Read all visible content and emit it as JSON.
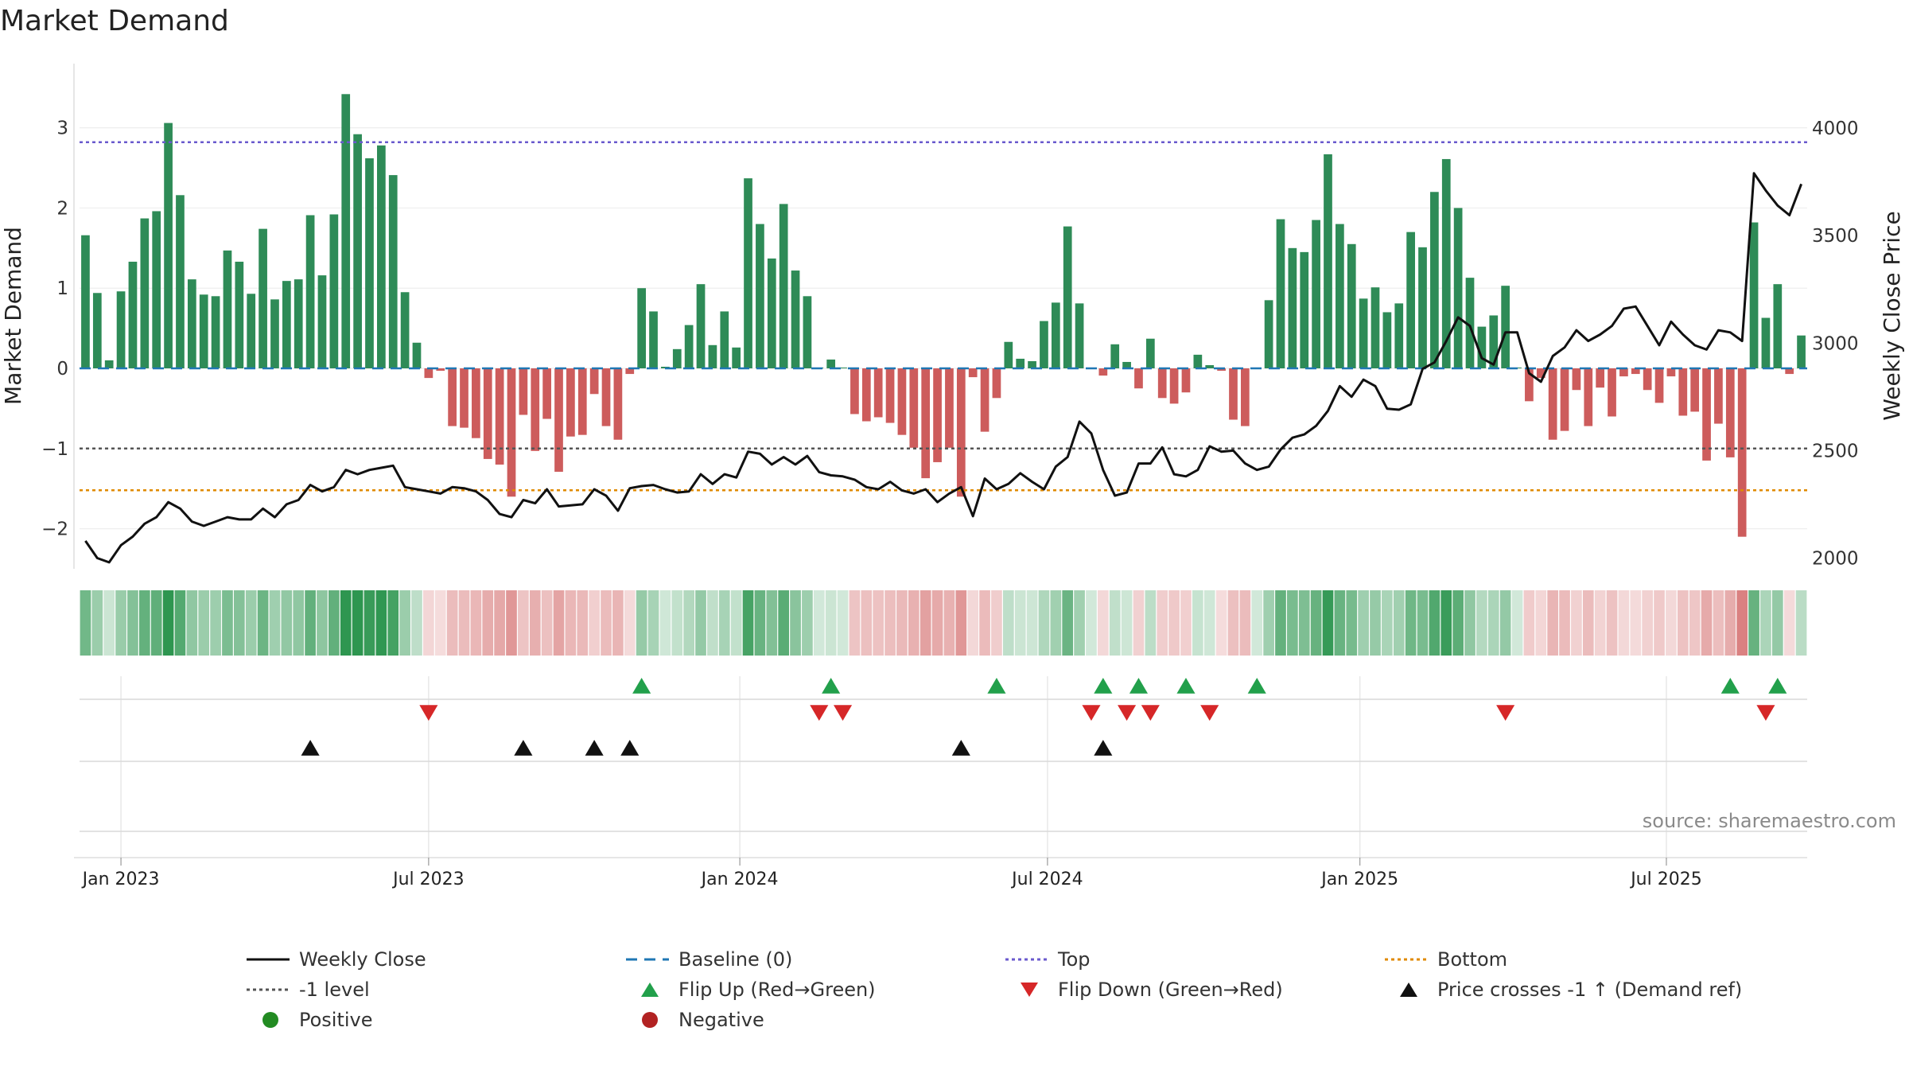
{
  "title": "Market Demand",
  "source": "source: sharemaestro.com",
  "colors": {
    "positive_bar": "#2e8b57",
    "negative_bar": "#cd5c5c",
    "price_line": "#111111",
    "baseline": "#1f77b4",
    "top": "#6a5acd",
    "minus1": "#555555",
    "bottom": "#e08a00",
    "flip_up": "#22a04b",
    "flip_down": "#d62728",
    "price_cross": "#111111",
    "positive_dot": "#228b22",
    "negative_dot": "#b22222"
  },
  "legend": [
    {
      "label": "Weekly Close",
      "kind": "solid",
      "color": "#111111"
    },
    {
      "label": "Baseline (0)",
      "kind": "dashed",
      "color": "#1f77b4"
    },
    {
      "label": "Top",
      "kind": "dotted",
      "color": "#6a5acd"
    },
    {
      "label": "Bottom",
      "kind": "dotted",
      "color": "#e08a00"
    },
    {
      "label": "-1 level",
      "kind": "dotted",
      "color": "#555555"
    },
    {
      "label": "Flip Up (Red→Green)",
      "kind": "tri-up",
      "color": "#22a04b"
    },
    {
      "label": "Flip Down (Green→Red)",
      "kind": "tri-down",
      "color": "#d62728"
    },
    {
      "label": "Price crosses -1 ↑ (Demand ref)",
      "kind": "tri-up",
      "color": "#111111"
    },
    {
      "label": "Positive",
      "kind": "dot",
      "color": "#228b22"
    },
    {
      "label": "Negative",
      "kind": "dot",
      "color": "#b22222"
    }
  ],
  "chart_data": {
    "type": "bar",
    "title": "Market Demand",
    "ylabel": "Market Demand",
    "y2label": "Weekly Close Price",
    "ylim": [
      -2.5,
      3.8
    ],
    "y2lim": [
      1950,
      4300
    ],
    "yticks": [
      -2,
      -1,
      0,
      1,
      2,
      3
    ],
    "y2ticks": [
      2000,
      2500,
      3000,
      3500,
      4000
    ],
    "x_tick_labels": [
      "Jan 2023",
      "Jul 2023",
      "Jan 2024",
      "Jul 2024",
      "Jan 2025",
      "Jul 2025"
    ],
    "x_tick_weeks": [
      3,
      29,
      55.3,
      81.3,
      107.7,
      133.6
    ],
    "reference_lines": {
      "top": 2.82,
      "minus1": -1.0,
      "bottom": -1.52,
      "baseline": 0
    },
    "series": [
      {
        "name": "Market Demand",
        "values": [
          1.66,
          0.94,
          0.1,
          0.96,
          1.33,
          1.87,
          1.96,
          3.06,
          2.16,
          1.11,
          0.92,
          0.9,
          1.47,
          1.33,
          0.93,
          1.74,
          0.86,
          1.09,
          1.11,
          1.91,
          1.16,
          1.92,
          3.42,
          2.92,
          2.62,
          2.78,
          2.41,
          0.95,
          0.32,
          -0.12,
          -0.03,
          -0.72,
          -0.74,
          -0.87,
          -1.13,
          -1.2,
          -1.6,
          -0.58,
          -1.03,
          -0.63,
          -1.29,
          -0.85,
          -0.83,
          -0.32,
          -0.72,
          -0.89,
          -0.07,
          1.0,
          0.71,
          0.02,
          0.24,
          0.54,
          1.05,
          0.29,
          0.71,
          0.26,
          2.37,
          1.8,
          1.37,
          2.05,
          1.22,
          0.9,
          0.01,
          0.11,
          0.01,
          -0.57,
          -0.66,
          -0.61,
          -0.68,
          -0.83,
          -0.99,
          -1.37,
          -1.17,
          -0.99,
          -1.6,
          -0.11,
          -0.79,
          -0.37,
          0.33,
          0.12,
          0.09,
          0.59,
          0.82,
          1.77,
          0.81,
          0.01,
          -0.09,
          0.3,
          0.08,
          -0.25,
          0.37,
          -0.37,
          -0.44,
          -0.3,
          0.17,
          0.04,
          -0.03,
          -0.64,
          -0.72,
          0.01,
          0.85,
          1.86,
          1.5,
          1.45,
          1.85,
          2.67,
          1.8,
          1.55,
          0.87,
          1.01,
          0.7,
          0.81,
          1.7,
          1.51,
          2.2,
          2.61,
          2.0,
          1.13,
          0.52,
          0.66,
          1.03,
          0.01,
          -0.41,
          -0.12,
          -0.89,
          -0.78,
          -0.27,
          -0.72,
          -0.24,
          -0.6,
          -0.1,
          -0.07,
          -0.27,
          -0.43,
          -0.1,
          -0.59,
          -0.54,
          -1.15,
          -0.69,
          -1.11,
          -2.1,
          1.82,
          0.63,
          1.05,
          -0.07,
          0.41
        ]
      },
      {
        "name": "Weekly Close",
        "axis": "right",
        "values": [
          2080,
          2000,
          1980,
          2060,
          2100,
          2160,
          2190,
          2260,
          2230,
          2170,
          2150,
          2170,
          2190,
          2180,
          2180,
          2230,
          2190,
          2250,
          2270,
          2340,
          2310,
          2330,
          2410,
          2390,
          2410,
          2420,
          2430,
          2330,
          2320,
          2310,
          2300,
          2330,
          2325,
          2310,
          2270,
          2205,
          2190,
          2270,
          2255,
          2320,
          2240,
          2245,
          2250,
          2320,
          2290,
          2220,
          2325,
          2335,
          2340,
          2320,
          2305,
          2310,
          2390,
          2345,
          2390,
          2375,
          2495,
          2485,
          2435,
          2470,
          2435,
          2475,
          2400,
          2385,
          2380,
          2365,
          2330,
          2320,
          2355,
          2315,
          2300,
          2320,
          2260,
          2300,
          2330,
          2195,
          2370,
          2320,
          2345,
          2395,
          2355,
          2320,
          2425,
          2470,
          2635,
          2580,
          2410,
          2290,
          2305,
          2440,
          2440,
          2515,
          2390,
          2380,
          2410,
          2520,
          2495,
          2500,
          2440,
          2410,
          2425,
          2505,
          2560,
          2575,
          2615,
          2685,
          2800,
          2750,
          2830,
          2800,
          2695,
          2690,
          2715,
          2880,
          2910,
          3010,
          3120,
          3080,
          2930,
          2900,
          3050,
          3050,
          2860,
          2820,
          2940,
          2980,
          3060,
          3010,
          3040,
          3080,
          3160,
          3170,
          3080,
          2990,
          3100,
          3040,
          2990,
          2970,
          3060,
          3050,
          3010,
          3790,
          3710,
          3640,
          3595,
          3740
        ]
      }
    ],
    "markers": {
      "flip_up_weeks": [
        47,
        63,
        77,
        86,
        89,
        93,
        99,
        139,
        143
      ],
      "flip_down_weeks": [
        29,
        62,
        64,
        85,
        88,
        90,
        95,
        120,
        142
      ],
      "price_cross_weeks": [
        19,
        37,
        43,
        46,
        74,
        86
      ]
    },
    "heat_strip": "weekly demand intensity (green positive, red negative)"
  }
}
